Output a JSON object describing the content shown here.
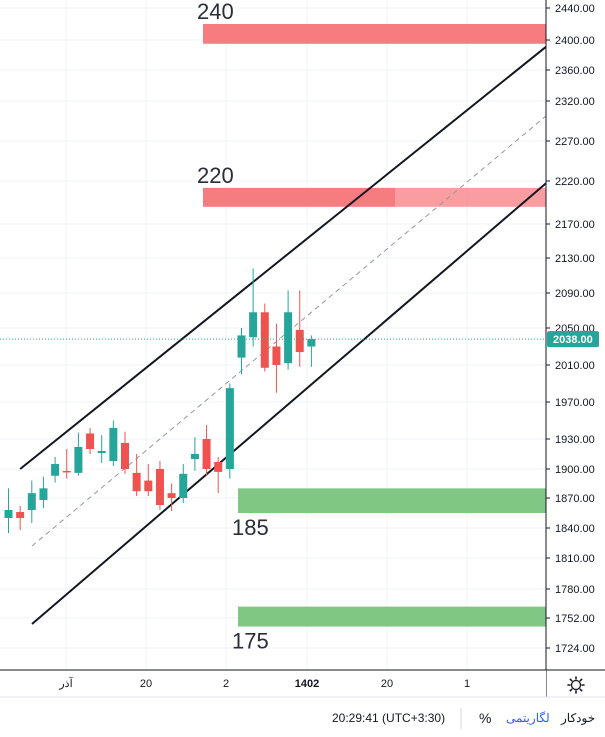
{
  "chart_data": {
    "type": "candlestick",
    "price_axis": {
      "ticks": [
        "2440.00",
        "2400.00",
        "2360.00",
        "2320.00",
        "2270.00",
        "2220.00",
        "2170.00",
        "2130.00",
        "2090.00",
        "2050.00",
        "2010.00",
        "1970.00",
        "1930.00",
        "1900.00",
        "1870.00",
        "1840.00",
        "1810.00",
        "1780.00",
        "1752.00",
        "1724.00"
      ],
      "last_price": "2038.00"
    },
    "time_axis": {
      "ticks": [
        "آذر",
        "20",
        "2",
        "1402",
        "20",
        "1"
      ]
    },
    "candles": [
      {
        "o": 1850,
        "h": 1880,
        "l": 1835,
        "c": 1858
      },
      {
        "o": 1856,
        "h": 1862,
        "l": 1838,
        "c": 1850
      },
      {
        "o": 1858,
        "h": 1888,
        "l": 1845,
        "c": 1875
      },
      {
        "o": 1868,
        "h": 1892,
        "l": 1860,
        "c": 1880
      },
      {
        "o": 1893,
        "h": 1912,
        "l": 1886,
        "c": 1905
      },
      {
        "o": 1898,
        "h": 1920,
        "l": 1890,
        "c": 1897
      },
      {
        "o": 1896,
        "h": 1937,
        "l": 1893,
        "c": 1922
      },
      {
        "o": 1936,
        "h": 1942,
        "l": 1915,
        "c": 1920
      },
      {
        "o": 1916,
        "h": 1934,
        "l": 1906,
        "c": 1918
      },
      {
        "o": 1908,
        "h": 1950,
        "l": 1903,
        "c": 1942
      },
      {
        "o": 1926,
        "h": 1938,
        "l": 1895,
        "c": 1900
      },
      {
        "o": 1896,
        "h": 1915,
        "l": 1872,
        "c": 1877
      },
      {
        "o": 1888,
        "h": 1905,
        "l": 1872,
        "c": 1877
      },
      {
        "o": 1900,
        "h": 1908,
        "l": 1858,
        "c": 1863
      },
      {
        "o": 1875,
        "h": 1885,
        "l": 1857,
        "c": 1870
      },
      {
        "o": 1870,
        "h": 1905,
        "l": 1865,
        "c": 1895
      },
      {
        "o": 1910,
        "h": 1932,
        "l": 1898,
        "c": 1915
      },
      {
        "o": 1930,
        "h": 1945,
        "l": 1893,
        "c": 1900
      },
      {
        "o": 1907,
        "h": 1912,
        "l": 1875,
        "c": 1897
      },
      {
        "o": 1900,
        "h": 1990,
        "l": 1890,
        "c": 1985
      },
      {
        "o": 2018,
        "h": 2050,
        "l": 2000,
        "c": 2042
      },
      {
        "o": 2040,
        "h": 2118,
        "l": 2030,
        "c": 2068
      },
      {
        "o": 2068,
        "h": 2078,
        "l": 2003,
        "c": 2007
      },
      {
        "o": 2030,
        "h": 2055,
        "l": 1980,
        "c": 2010
      },
      {
        "o": 2012,
        "h": 2093,
        "l": 2005,
        "c": 2068
      },
      {
        "o": 2048,
        "h": 2093,
        "l": 2008,
        "c": 2024
      },
      {
        "o": 2030,
        "h": 2042,
        "l": 2008,
        "c": 2038
      }
    ],
    "zones": [
      {
        "label": "240",
        "top": 2420,
        "bottom": 2395,
        "color": "#f77c80"
      },
      {
        "label": "220",
        "top": 2212,
        "bottom": 2190,
        "color": "#f77c80",
        "faded_from_index": 21
      },
      {
        "label": "185",
        "top": 1880,
        "bottom": 1855,
        "color": "#81c784"
      },
      {
        "label": "175",
        "top": 1763,
        "bottom": 1744,
        "color": "#81c784"
      }
    ],
    "channel": {
      "upper": {
        "from": [
          1,
          1900
        ],
        "to": [
          42,
          2340
        ]
      },
      "lower": {
        "from": [
          1,
          1743
        ],
        "to": [
          42,
          2170
        ]
      },
      "mid": {
        "from": [
          1,
          1822
        ],
        "to": [
          42,
          2252
        ]
      }
    },
    "grid": true,
    "colors": {
      "up": "#26a69a",
      "down": "#ef5350",
      "current_line": "#26a69a",
      "price_tag": "#26a69a"
    }
  },
  "footer": {
    "clock": "20:29:41 (UTC+3:30)",
    "percent": "%",
    "log": "لگاریتمی",
    "auto": "خودکار"
  }
}
